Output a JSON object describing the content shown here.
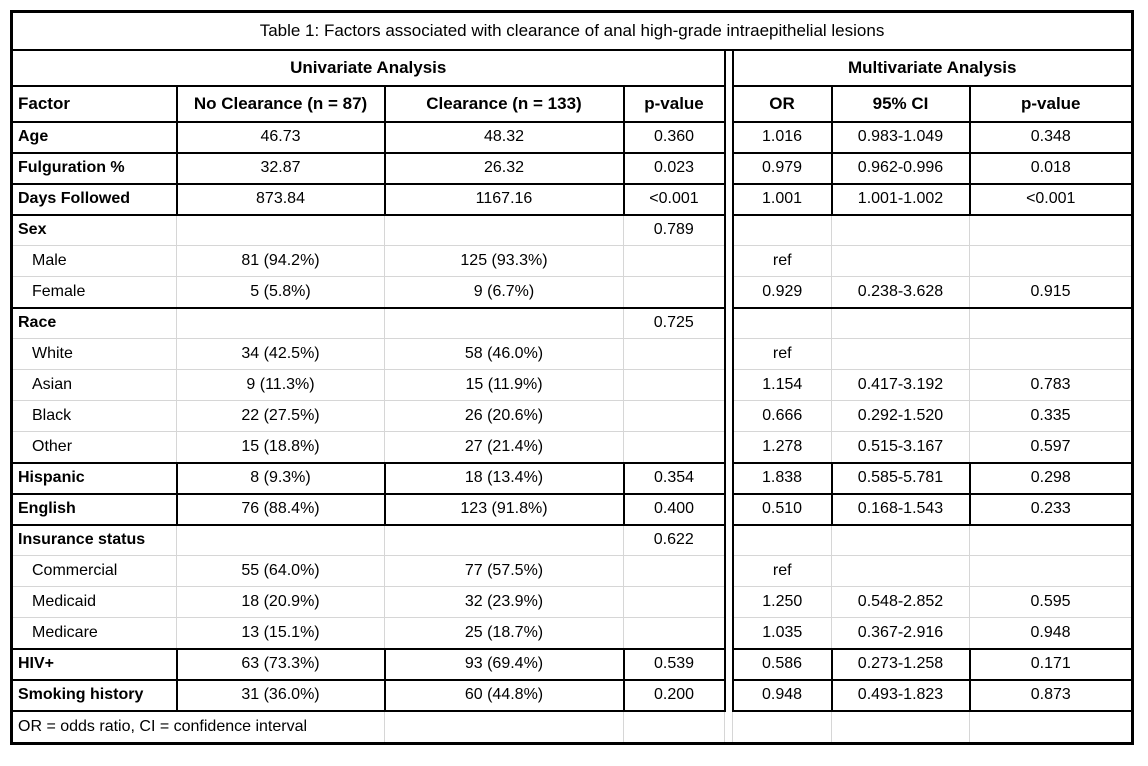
{
  "table": {
    "title": "Table 1: Factors associated with clearance of anal high-grade intraepithelial lesions",
    "sections": {
      "univariate": "Univariate Analysis",
      "multivariate": "Multivariate Analysis"
    },
    "columns": {
      "factor": "Factor",
      "no_clearance": "No Clearance (n = 87)",
      "clearance": "Clearance (n = 133)",
      "p_value_univariate": "p-value",
      "odds_ratio": "OR",
      "confidence_interval": "95% CI",
      "p_value_multivariate": "p-value"
    },
    "rows": [
      {
        "label": "Age",
        "indent": false,
        "borders": "black",
        "groupStart": false,
        "groupEnd": false,
        "no_clearance": "46.73",
        "clearance": "48.32",
        "p_uni": "0.360",
        "or": "1.016",
        "ci": "0.983-1.049",
        "p_multi": "0.348"
      },
      {
        "label": "Fulguration %",
        "indent": false,
        "borders": "black",
        "groupStart": false,
        "groupEnd": false,
        "no_clearance": "32.87",
        "clearance": "26.32",
        "p_uni": "0.023",
        "or": "0.979",
        "ci": "0.962-0.996",
        "p_multi": "0.018"
      },
      {
        "label": "Days Followed",
        "indent": false,
        "borders": "black",
        "groupStart": false,
        "groupEnd": false,
        "no_clearance": "873.84",
        "clearance": "1167.16",
        "p_uni": "<0.001",
        "or": "1.001",
        "ci": "1.001-1.002",
        "p_multi": "<0.001"
      },
      {
        "label": "Sex",
        "indent": false,
        "borders": "gray",
        "groupStart": true,
        "groupEnd": false,
        "no_clearance": "",
        "clearance": "",
        "p_uni": "0.789",
        "or": "",
        "ci": "",
        "p_multi": ""
      },
      {
        "label": "Male",
        "indent": true,
        "borders": "gray",
        "groupStart": false,
        "groupEnd": false,
        "no_clearance": "81 (94.2%)",
        "clearance": "125 (93.3%)",
        "p_uni": "",
        "or": "ref",
        "ci": "",
        "p_multi": ""
      },
      {
        "label": "Female",
        "indent": true,
        "borders": "gray",
        "groupStart": false,
        "groupEnd": true,
        "no_clearance": "5 (5.8%)",
        "clearance": "9 (6.7%)",
        "p_uni": "",
        "or": "0.929",
        "ci": "0.238-3.628",
        "p_multi": "0.915"
      },
      {
        "label": "Race",
        "indent": false,
        "borders": "gray",
        "groupStart": true,
        "groupEnd": false,
        "no_clearance": "",
        "clearance": "",
        "p_uni": "0.725",
        "or": "",
        "ci": "",
        "p_multi": ""
      },
      {
        "label": "White",
        "indent": true,
        "borders": "gray",
        "groupStart": false,
        "groupEnd": false,
        "no_clearance": "34 (42.5%)",
        "clearance": "58 (46.0%)",
        "p_uni": "",
        "or": "ref",
        "ci": "",
        "p_multi": ""
      },
      {
        "label": "Asian",
        "indent": true,
        "borders": "gray",
        "groupStart": false,
        "groupEnd": false,
        "no_clearance": "9 (11.3%)",
        "clearance": "15 (11.9%)",
        "p_uni": "",
        "or": "1.154",
        "ci": "0.417-3.192",
        "p_multi": "0.783"
      },
      {
        "label": "Black",
        "indent": true,
        "borders": "gray",
        "groupStart": false,
        "groupEnd": false,
        "no_clearance": "22 (27.5%)",
        "clearance": "26 (20.6%)",
        "p_uni": "",
        "or": "0.666",
        "ci": "0.292-1.520",
        "p_multi": "0.335"
      },
      {
        "label": "Other",
        "indent": true,
        "borders": "gray",
        "groupStart": false,
        "groupEnd": true,
        "no_clearance": "15 (18.8%)",
        "clearance": "27 (21.4%)",
        "p_uni": "",
        "or": "1.278",
        "ci": "0.515-3.167",
        "p_multi": "0.597"
      },
      {
        "label": "Hispanic",
        "indent": false,
        "borders": "black",
        "groupStart": false,
        "groupEnd": false,
        "no_clearance": "8 (9.3%)",
        "clearance": "18 (13.4%)",
        "p_uni": "0.354",
        "or": "1.838",
        "ci": "0.585-5.781",
        "p_multi": "0.298"
      },
      {
        "label": "English",
        "indent": false,
        "borders": "black",
        "groupStart": false,
        "groupEnd": false,
        "no_clearance": "76 (88.4%)",
        "clearance": "123 (91.8%)",
        "p_uni": "0.400",
        "or": "0.510",
        "ci": "0.168-1.543",
        "p_multi": "0.233"
      },
      {
        "label": "Insurance status",
        "indent": false,
        "borders": "gray",
        "groupStart": true,
        "groupEnd": false,
        "no_clearance": "",
        "clearance": "",
        "p_uni": "0.622",
        "or": "",
        "ci": "",
        "p_multi": ""
      },
      {
        "label": "Commercial",
        "indent": true,
        "borders": "gray",
        "groupStart": false,
        "groupEnd": false,
        "no_clearance": "55 (64.0%)",
        "clearance": "77 (57.5%)",
        "p_uni": "",
        "or": "ref",
        "ci": "",
        "p_multi": ""
      },
      {
        "label": "Medicaid",
        "indent": true,
        "borders": "gray",
        "groupStart": false,
        "groupEnd": false,
        "no_clearance": "18 (20.9%)",
        "clearance": "32 (23.9%)",
        "p_uni": "",
        "or": "1.250",
        "ci": "0.548-2.852",
        "p_multi": "0.595"
      },
      {
        "label": "Medicare",
        "indent": true,
        "borders": "gray",
        "groupStart": false,
        "groupEnd": true,
        "no_clearance": "13 (15.1%)",
        "clearance": "25 (18.7%)",
        "p_uni": "",
        "or": "1.035",
        "ci": "0.367-2.916",
        "p_multi": "0.948"
      },
      {
        "label": "HIV+",
        "indent": false,
        "borders": "black",
        "groupStart": false,
        "groupEnd": false,
        "no_clearance": "63 (73.3%)",
        "clearance": "93 (69.4%)",
        "p_uni": "0.539",
        "or": "0.586",
        "ci": "0.273-1.258",
        "p_multi": "0.171"
      },
      {
        "label": "Smoking history",
        "indent": false,
        "borders": "black",
        "groupStart": false,
        "groupEnd": false,
        "no_clearance": "31 (36.0%)",
        "clearance": "60 (44.8%)",
        "p_uni": "0.200",
        "or": "0.948",
        "ci": "0.493-1.823",
        "p_multi": "0.873"
      }
    ],
    "footnote": "OR = odds ratio, CI = confidence interval"
  },
  "colors": {
    "border_black": "#000000",
    "grid_gray": "#d6d6d6",
    "background": "#ffffff",
    "text": "#000000"
  }
}
